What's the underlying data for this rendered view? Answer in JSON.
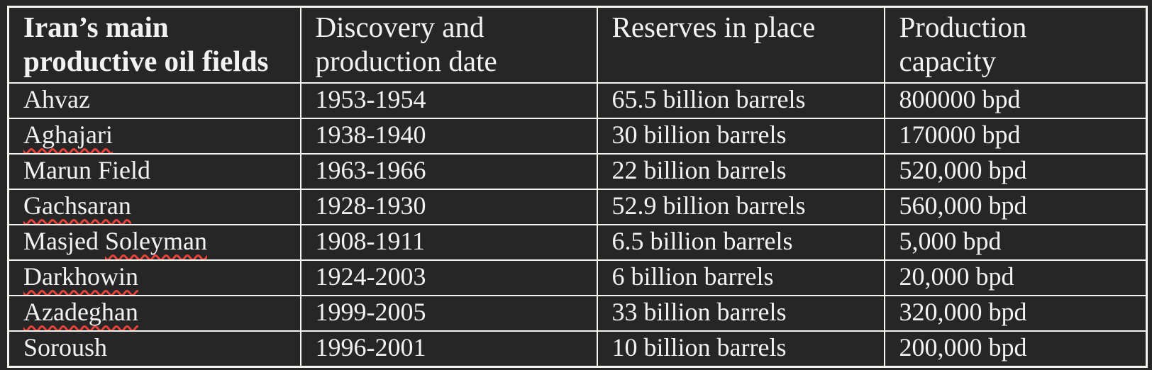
{
  "colors": {
    "background": "#262626",
    "border": "#f5f4f1",
    "text": "#f2f2f2",
    "spellcheck_squiggle": "#e8423a"
  },
  "table": {
    "headers": [
      "Iran’s main productive oil fields",
      "Discovery and production date",
      "Reserves in place",
      "Production capacity"
    ],
    "rows": [
      {
        "field": "Ahvaz",
        "spellcheck": null,
        "date": "1953-1954",
        "reserves": "65.5 billion barrels",
        "capacity": "800000 bpd"
      },
      {
        "field": "Aghajari",
        "spellcheck": "Aghajari",
        "date": "1938-1940",
        "reserves": "30 billion barrels",
        "capacity": "170000 bpd"
      },
      {
        "field": "Marun Field",
        "spellcheck": null,
        "date": "1963-1966",
        "reserves": "22 billion barrels",
        "capacity": "520,000 bpd"
      },
      {
        "field": "Gachsaran",
        "spellcheck": "Gachsaran",
        "date": "1928-1930",
        "reserves": "52.9 billion barrels",
        "capacity": "560,000 bpd"
      },
      {
        "field": "Masjed Soleyman",
        "spellcheck": "Soleyman",
        "date": "1908-1911",
        "reserves": "6.5 billion barrels",
        "capacity": "5,000 bpd"
      },
      {
        "field": "Darkhowin",
        "spellcheck": "Darkhowin",
        "date": "1924-2003",
        "reserves": "6 billion barrels",
        "capacity": "20,000 bpd"
      },
      {
        "field": "Azadeghan",
        "spellcheck": "Azadeghan",
        "date": "1999-2005",
        "reserves": "33 billion barrels",
        "capacity": "320,000 bpd"
      },
      {
        "field": "Soroush",
        "spellcheck": null,
        "date": "1996-2001",
        "reserves": "10 billion barrels",
        "capacity": "200,000 bpd"
      }
    ]
  }
}
